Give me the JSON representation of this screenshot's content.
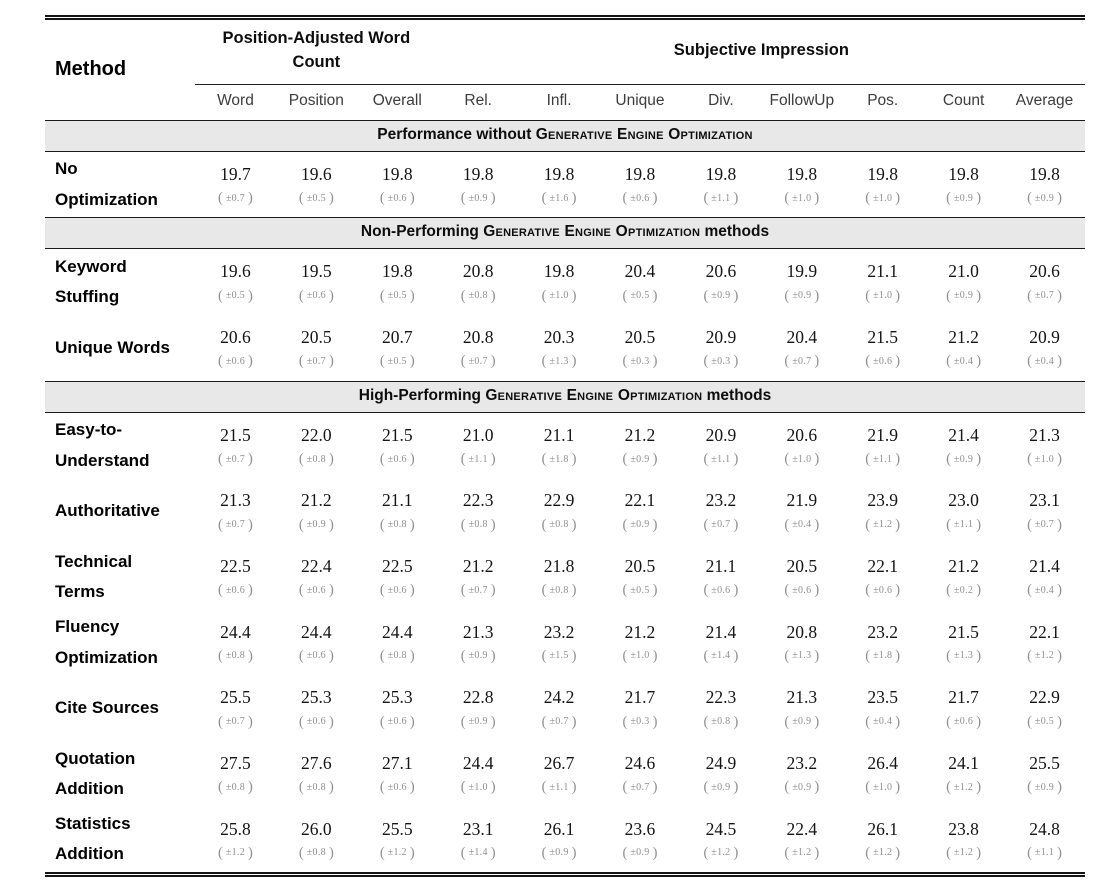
{
  "table": {
    "method_header": "Method",
    "group_headers": [
      "Position-Adjusted Word Count",
      "Subjective Impression"
    ],
    "columns": [
      "Word",
      "Position",
      "Overall",
      "Rel.",
      "Infl.",
      "Unique",
      "Div.",
      "FollowUp",
      "Pos.",
      "Count",
      "Average"
    ],
    "sections": [
      {
        "title_prefix": "Performance without ",
        "title_smallcaps": "Generative Engine Optimization",
        "title_suffix": "",
        "methods": [
          {
            "name": "No\nOptimization",
            "values": [
              "19.7",
              "19.6",
              "19.8",
              "19.8",
              "19.8",
              "19.8",
              "19.8",
              "19.8",
              "19.8",
              "19.8",
              "19.8"
            ],
            "sds": [
              "±0.7",
              "±0.5",
              "±0.6",
              "±0.9",
              "±1.6",
              "±0.6",
              "±1.1",
              "±1.0",
              "±1.0",
              "±0.9",
              "±0.9"
            ]
          }
        ]
      },
      {
        "title_prefix": "Non-Performing ",
        "title_smallcaps": "Generative Engine Optimization",
        "title_suffix": " methods",
        "methods": [
          {
            "name": "Keyword\nStuffing",
            "values": [
              "19.6",
              "19.5",
              "19.8",
              "20.8",
              "19.8",
              "20.4",
              "20.6",
              "19.9",
              "21.1",
              "21.0",
              "20.6"
            ],
            "sds": [
              "±0.5",
              "±0.6",
              "±0.5",
              "±0.8",
              "±1.0",
              "±0.5",
              "±0.9",
              "±0.9",
              "±1.0",
              "±0.9",
              "±0.7"
            ]
          },
          {
            "name": "Unique Words",
            "values": [
              "20.6",
              "20.5",
              "20.7",
              "20.8",
              "20.3",
              "20.5",
              "20.9",
              "20.4",
              "21.5",
              "21.2",
              "20.9"
            ],
            "sds": [
              "±0.6",
              "±0.7",
              "±0.5",
              "±0.7",
              "±1.3",
              "±0.3",
              "±0.3",
              "±0.7",
              "±0.6",
              "±0.4",
              "±0.4"
            ]
          }
        ]
      },
      {
        "title_prefix": "High-Performing ",
        "title_smallcaps": "Generative Engine Optimization",
        "title_suffix": " methods",
        "methods": [
          {
            "name": "Easy-to-\nUnderstand",
            "values": [
              "21.5",
              "22.0",
              "21.5",
              "21.0",
              "21.1",
              "21.2",
              "20.9",
              "20.6",
              "21.9",
              "21.4",
              "21.3"
            ],
            "sds": [
              "±0.7",
              "±0.8",
              "±0.6",
              "±1.1",
              "±1.8",
              "±0.9",
              "±1.1",
              "±1.0",
              "±1.1",
              "±0.9",
              "±1.0"
            ]
          },
          {
            "name": "Authoritative",
            "values": [
              "21.3",
              "21.2",
              "21.1",
              "22.3",
              "22.9",
              "22.1",
              "23.2",
              "21.9",
              "23.9",
              "23.0",
              "23.1"
            ],
            "sds": [
              "±0.7",
              "±0.9",
              "±0.8",
              "±0.8",
              "±0.8",
              "±0.9",
              "±0.7",
              "±0.4",
              "±1.2",
              "±1.1",
              "±0.7"
            ]
          },
          {
            "name": "Technical\nTerms",
            "values": [
              "22.5",
              "22.4",
              "22.5",
              "21.2",
              "21.8",
              "20.5",
              "21.1",
              "20.5",
              "22.1",
              "21.2",
              "21.4"
            ],
            "sds": [
              "±0.6",
              "±0.6",
              "±0.6",
              "±0.7",
              "±0.8",
              "±0.5",
              "±0.6",
              "±0.6",
              "±0.6",
              "±0.2",
              "±0.4"
            ]
          },
          {
            "name": "Fluency\nOptimization",
            "values": [
              "24.4",
              "24.4",
              "24.4",
              "21.3",
              "23.2",
              "21.2",
              "21.4",
              "20.8",
              "23.2",
              "21.5",
              "22.1"
            ],
            "sds": [
              "±0.8",
              "±0.6",
              "±0.8",
              "±0.9",
              "±1.5",
              "±1.0",
              "±1.4",
              "±1.3",
              "±1.8",
              "±1.3",
              "±1.2"
            ]
          },
          {
            "name": "Cite Sources",
            "values": [
              "25.5",
              "25.3",
              "25.3",
              "22.8",
              "24.2",
              "21.7",
              "22.3",
              "21.3",
              "23.5",
              "21.7",
              "22.9"
            ],
            "sds": [
              "±0.7",
              "±0.6",
              "±0.6",
              "±0.9",
              "±0.7",
              "±0.3",
              "±0.8",
              "±0.9",
              "±0.4",
              "±0.6",
              "±0.5"
            ]
          },
          {
            "name": "Quotation\nAddition",
            "values": [
              "27.5",
              "27.6",
              "27.1",
              "24.4",
              "26.7",
              "24.6",
              "24.9",
              "23.2",
              "26.4",
              "24.1",
              "25.5"
            ],
            "sds": [
              "±0.8",
              "±0.8",
              "±0.6",
              "±1.0",
              "±1.1",
              "±0.7",
              "±0.9",
              "±0.9",
              "±1.0",
              "±1.2",
              "±0.9"
            ]
          },
          {
            "name": "Statistics\nAddition",
            "values": [
              "25.8",
              "26.0",
              "25.5",
              "23.1",
              "26.1",
              "23.6",
              "24.5",
              "22.4",
              "26.1",
              "23.8",
              "24.8"
            ],
            "sds": [
              "±1.2",
              "±0.8",
              "±1.2",
              "±1.4",
              "±0.9",
              "±0.9",
              "±1.2",
              "±1.2",
              "±1.2",
              "±1.2",
              "±1.1"
            ]
          }
        ]
      }
    ]
  },
  "colors": {
    "section_band_bg": "#e8e8e8",
    "std_dev_text": "#8f8f8f",
    "rule": "#141414"
  }
}
